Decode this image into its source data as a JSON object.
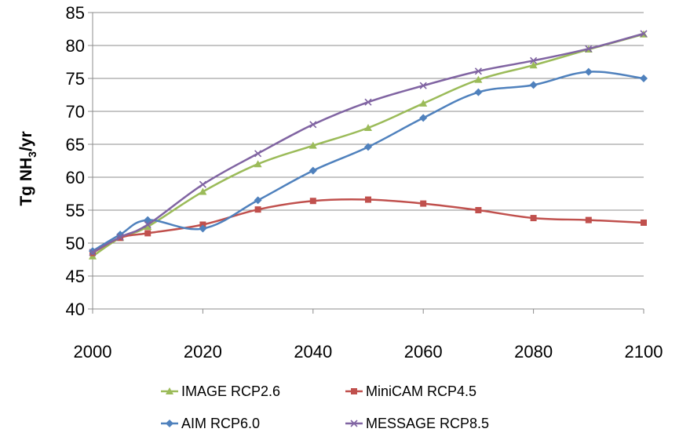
{
  "chart_data": {
    "type": "line",
    "ylabel": "Tg NH",
    "ylabel_sub": "3",
    "ylabel_suffix": "/yr",
    "ylim": [
      40,
      85
    ],
    "xlim": [
      2000,
      2100
    ],
    "yticks": [
      40,
      45,
      50,
      55,
      60,
      65,
      70,
      75,
      80,
      85
    ],
    "ytick_labels": [
      "40",
      "45",
      "50",
      "55",
      "60",
      "65",
      "70",
      "75",
      "80",
      "85"
    ],
    "xticks": [
      2000,
      2020,
      2040,
      2060,
      2080,
      2100
    ],
    "xtick_labels": [
      "2000",
      "2020",
      "2040",
      "2060",
      "2080",
      "2100"
    ],
    "grid": "horizontal",
    "legend_position": "bottom",
    "series": [
      {
        "name": "IMAGE RCP2.6",
        "color": "#9bbb59",
        "marker": "triangle",
        "x": [
          2000,
          2005,
          2010,
          2020,
          2030,
          2040,
          2050,
          2060,
          2070,
          2080,
          2090,
          2100
        ],
        "y": [
          48.0,
          50.8,
          52.5,
          57.8,
          62.0,
          64.8,
          67.5,
          71.2,
          74.8,
          77.0,
          79.4,
          81.7
        ]
      },
      {
        "name": "MiniCAM RCP4.5",
        "color": "#c0504d",
        "marker": "square",
        "x": [
          2000,
          2005,
          2010,
          2020,
          2030,
          2040,
          2050,
          2060,
          2070,
          2080,
          2090,
          2100
        ],
        "y": [
          48.5,
          50.8,
          51.5,
          52.8,
          55.1,
          56.4,
          56.6,
          56.0,
          55.0,
          53.8,
          53.5,
          53.1
        ]
      },
      {
        "name": "AIM RCP6.0",
        "color": "#4f81bd",
        "marker": "diamond",
        "x": [
          2000,
          2005,
          2010,
          2020,
          2030,
          2040,
          2050,
          2060,
          2070,
          2080,
          2090,
          2100
        ],
        "y": [
          48.8,
          51.3,
          53.5,
          52.2,
          56.5,
          61.0,
          64.6,
          69.0,
          72.9,
          74.0,
          76.0,
          75.0
        ]
      },
      {
        "name": "MESSAGE RCP8.5",
        "color": "#8064a2",
        "marker": "x",
        "x": [
          2000,
          2005,
          2010,
          2020,
          2030,
          2040,
          2050,
          2060,
          2070,
          2080,
          2090,
          2100
        ],
        "y": [
          48.6,
          50.9,
          52.8,
          58.9,
          63.6,
          68.0,
          71.4,
          73.9,
          76.1,
          77.7,
          79.5,
          81.8
        ]
      }
    ]
  }
}
